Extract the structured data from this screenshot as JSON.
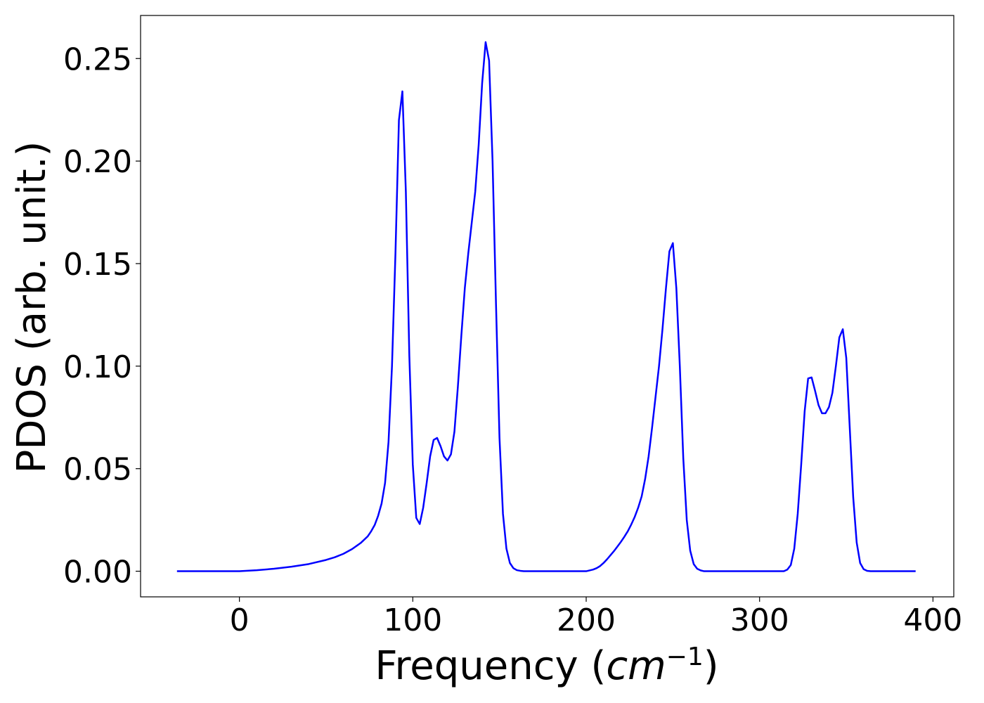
{
  "chart_data": {
    "type": "line",
    "title": "",
    "xlabel_prefix": "Frequency (",
    "xlabel_unit": "cm",
    "xlabel_exp": "−1",
    "xlabel_suffix": ")",
    "ylabel": "PDOS (arb. unit.)",
    "xlim": [
      -57,
      412
    ],
    "ylim": [
      -0.0125,
      0.271
    ],
    "xticks": [
      0,
      100,
      200,
      300,
      400
    ],
    "xtick_labels": [
      "0",
      "100",
      "200",
      "300",
      "400"
    ],
    "yticks": [
      0.0,
      0.05,
      0.1,
      0.15,
      0.2,
      0.25
    ],
    "ytick_labels": [
      "0.00",
      "0.05",
      "0.10",
      "0.15",
      "0.20",
      "0.25"
    ],
    "grid": false,
    "colors": {
      "line": "#0000ff",
      "axes": "#000000"
    },
    "series": [
      {
        "x": [
          -36,
          0,
          10,
          20,
          30,
          40,
          50,
          55,
          60,
          65,
          70,
          74,
          76,
          78,
          80,
          82,
          84,
          86,
          88,
          90,
          92,
          94,
          96,
          98,
          100,
          102,
          104,
          106,
          108,
          110,
          112,
          114,
          116,
          118,
          120,
          122,
          124,
          126,
          128,
          130,
          132,
          134,
          136,
          138,
          140,
          142,
          144,
          146,
          148,
          150,
          152,
          154,
          156,
          158,
          160,
          162,
          164,
          170,
          180,
          190,
          200,
          204,
          206,
          208,
          210,
          212,
          214,
          216,
          218,
          220,
          222,
          224,
          226,
          228,
          230,
          232,
          234,
          236,
          238,
          240,
          242,
          244,
          246,
          248,
          250,
          252,
          254,
          256,
          258,
          260,
          262,
          264,
          266,
          268,
          270,
          280,
          300,
          314,
          316,
          318,
          320,
          322,
          324,
          326,
          328,
          330,
          332,
          334,
          336,
          338,
          340,
          342,
          344,
          346,
          348,
          350,
          352,
          354,
          356,
          358,
          360,
          362,
          364,
          366,
          370,
          390
        ],
        "y": [
          0.0,
          0.0,
          0.0005,
          0.0012,
          0.0022,
          0.0035,
          0.0055,
          0.0068,
          0.0085,
          0.0108,
          0.0138,
          0.017,
          0.0195,
          0.0225,
          0.027,
          0.033,
          0.043,
          0.063,
          0.1,
          0.155,
          0.22,
          0.234,
          0.185,
          0.105,
          0.052,
          0.026,
          0.023,
          0.031,
          0.043,
          0.056,
          0.064,
          0.065,
          0.061,
          0.056,
          0.054,
          0.057,
          0.068,
          0.09,
          0.115,
          0.138,
          0.155,
          0.17,
          0.185,
          0.208,
          0.238,
          0.258,
          0.249,
          0.2,
          0.13,
          0.065,
          0.028,
          0.011,
          0.004,
          0.0015,
          0.0005,
          0.0002,
          0.0,
          0.0,
          0.0,
          0.0,
          0.0,
          0.0008,
          0.0015,
          0.0025,
          0.004,
          0.0058,
          0.0078,
          0.0098,
          0.012,
          0.0143,
          0.0168,
          0.0195,
          0.0228,
          0.0265,
          0.031,
          0.0365,
          0.045,
          0.056,
          0.07,
          0.085,
          0.1,
          0.118,
          0.138,
          0.156,
          0.16,
          0.138,
          0.1,
          0.055,
          0.025,
          0.01,
          0.0035,
          0.0012,
          0.0004,
          0.0,
          0.0,
          0.0,
          0.0,
          0.0,
          0.0008,
          0.003,
          0.011,
          0.028,
          0.052,
          0.078,
          0.094,
          0.0945,
          0.088,
          0.081,
          0.077,
          0.077,
          0.08,
          0.087,
          0.1,
          0.114,
          0.118,
          0.104,
          0.07,
          0.036,
          0.014,
          0.004,
          0.001,
          0.0002,
          0.0,
          0.0,
          0.0,
          0.0
        ]
      }
    ]
  }
}
